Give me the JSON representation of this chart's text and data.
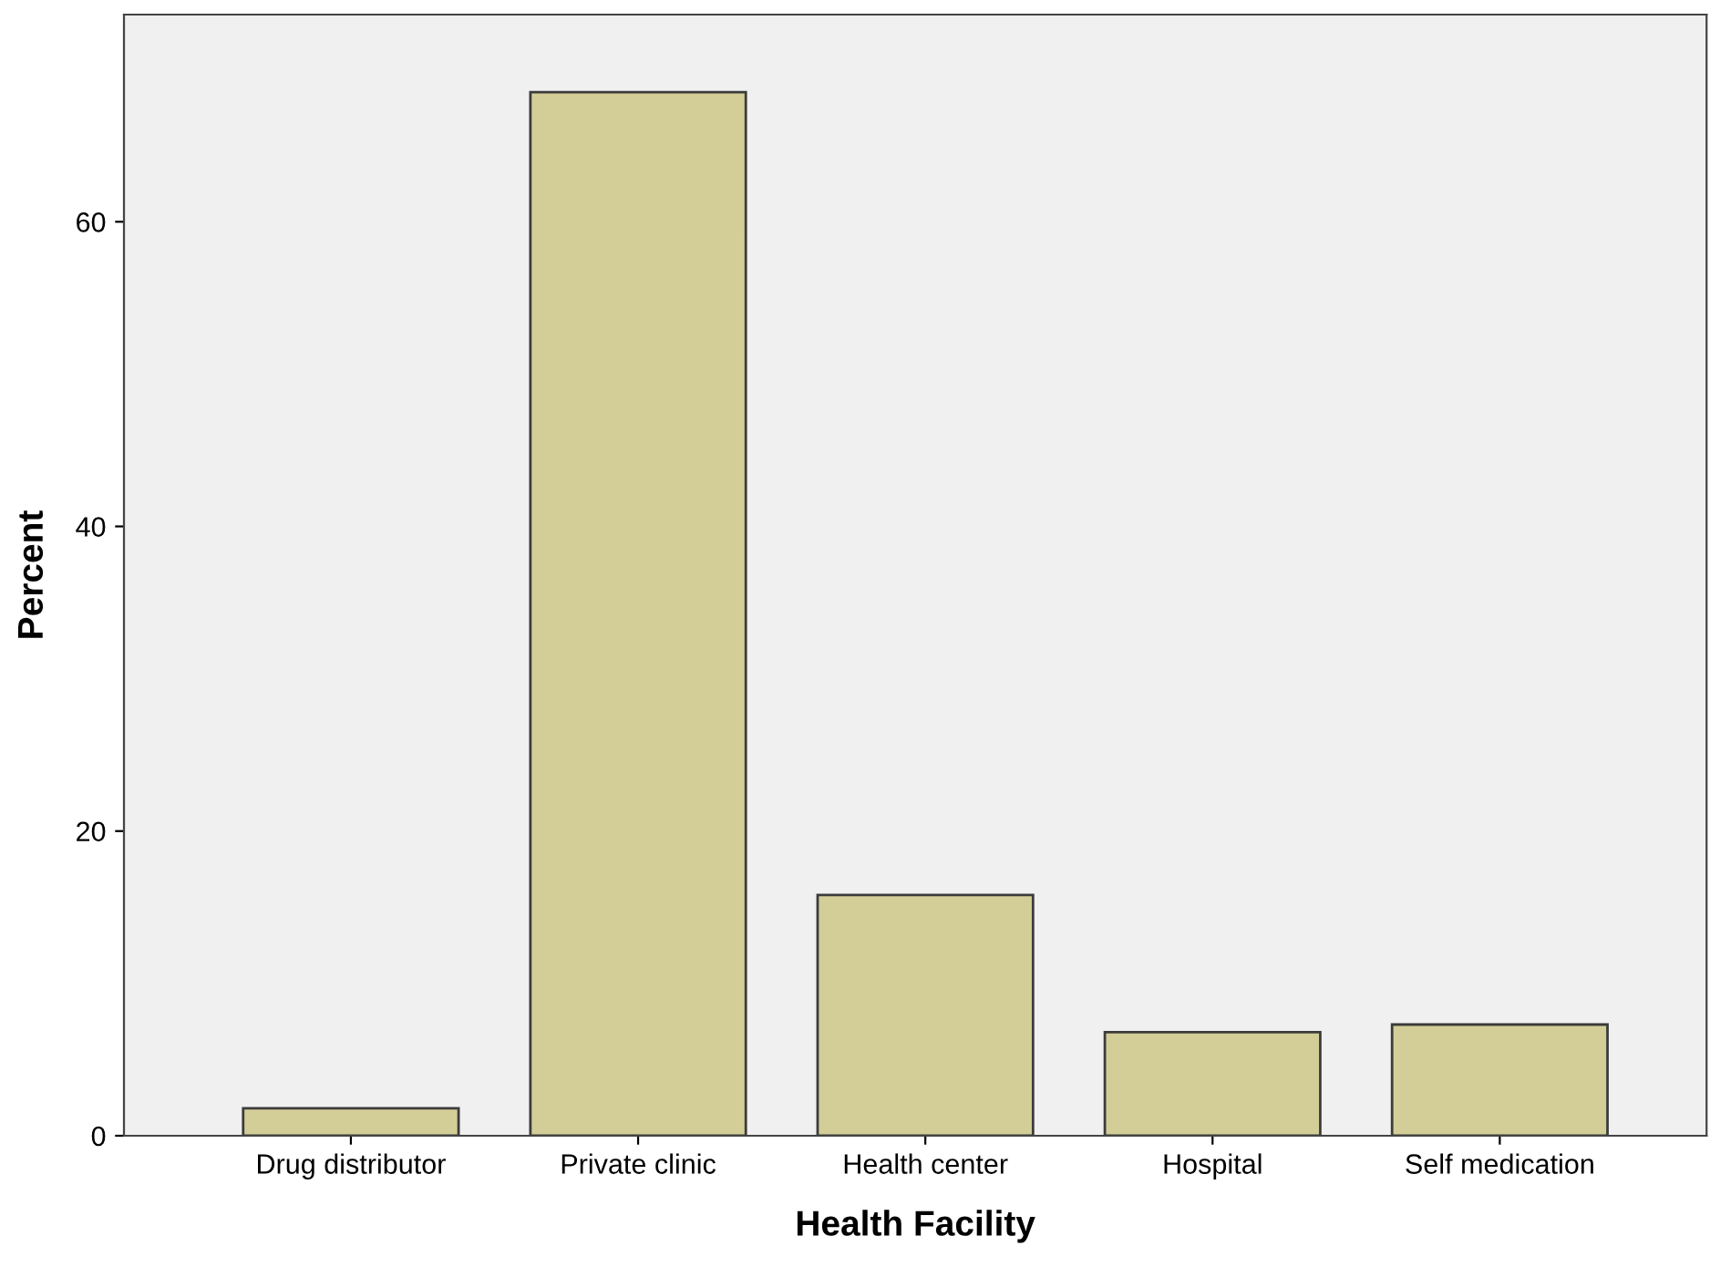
{
  "chart_data": {
    "type": "bar",
    "xlabel": "Health Facility",
    "ylabel": "Percent",
    "categories": [
      "Drug distributor",
      "Private clinic",
      "Health center",
      "Hospital",
      "Self medication"
    ],
    "values": [
      1.8,
      68.5,
      15.8,
      6.8,
      7.3
    ],
    "color": "#d3ce97",
    "ylim": [
      0,
      73.6
    ],
    "yticks": [
      0,
      20,
      40,
      60
    ],
    "grid": false,
    "legend": false
  }
}
